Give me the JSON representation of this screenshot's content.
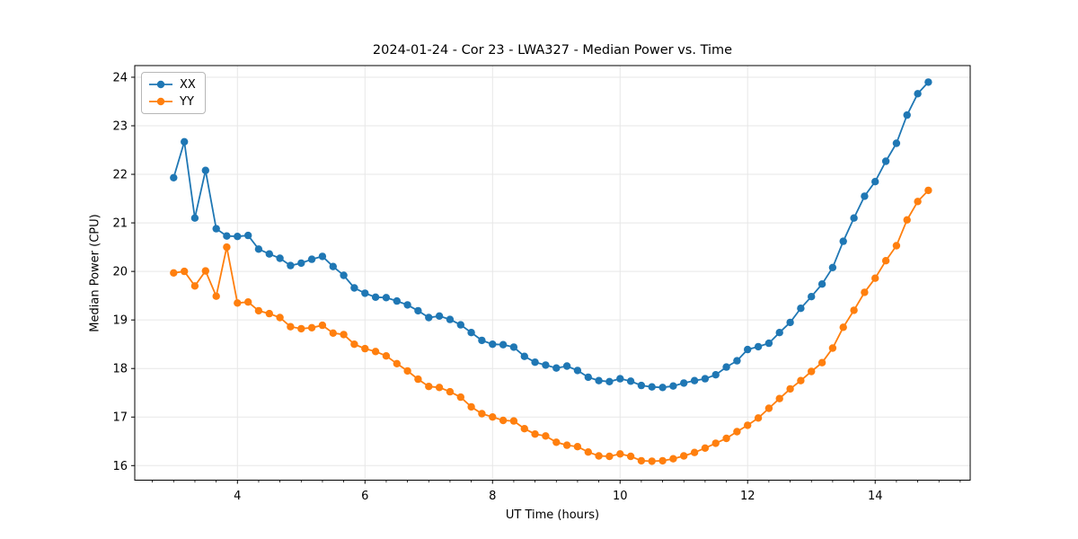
{
  "chart_data": {
    "type": "line",
    "title": "2024-01-24 - Cor 23 - LWA327 - Median Power vs. Time",
    "xlabel": "UT Time (hours)",
    "ylabel": "Median Power (CPU)",
    "grid": true,
    "legend_position": "upper left",
    "axes": {
      "xlim": [
        2.39,
        15.49
      ],
      "ylim": [
        15.7,
        24.24
      ],
      "xticks": [
        4,
        6,
        8,
        10,
        12,
        14
      ],
      "yticks": [
        16,
        17,
        18,
        19,
        20,
        21,
        22,
        23,
        24
      ],
      "x_minor_step": 0.3333
    },
    "style": {
      "grid_color": "#e7e7e7",
      "spine_color": "#000000",
      "tick_color": "#000000",
      "text_color": "#000000",
      "line_width": 1.8,
      "marker": "circle",
      "marker_radius": 4.2
    },
    "x": [
      3,
      3.167,
      3.333,
      3.5,
      3.667,
      3.833,
      4,
      4.167,
      4.333,
      4.5,
      4.667,
      4.833,
      5,
      5.167,
      5.333,
      5.5,
      5.667,
      5.833,
      6,
      6.167,
      6.333,
      6.5,
      6.667,
      6.833,
      7,
      7.167,
      7.333,
      7.5,
      7.667,
      7.833,
      8,
      8.167,
      8.333,
      8.5,
      8.667,
      8.833,
      9,
      9.167,
      9.333,
      9.5,
      9.667,
      9.833,
      10,
      10.167,
      10.333,
      10.5,
      10.667,
      10.833,
      11,
      11.167,
      11.333,
      11.5,
      11.667,
      11.833,
      12,
      12.167,
      12.333,
      12.5,
      12.667,
      12.833,
      13,
      13.167,
      13.333,
      13.5,
      13.667,
      13.833,
      14,
      14.167,
      14.333,
      14.5,
      14.667,
      14.833
    ],
    "series": [
      {
        "name": "XX",
        "color": "#1f77b4",
        "values": [
          21.93,
          22.67,
          21.1,
          22.08,
          20.88,
          20.73,
          20.72,
          20.74,
          20.46,
          20.36,
          20.27,
          20.12,
          20.17,
          20.25,
          20.31,
          20.1,
          19.92,
          19.66,
          19.55,
          19.47,
          19.46,
          19.39,
          19.31,
          19.19,
          19.05,
          19.08,
          19.01,
          18.9,
          18.74,
          18.58,
          18.5,
          18.49,
          18.44,
          18.25,
          18.13,
          18.07,
          18.01,
          18.05,
          17.96,
          17.82,
          17.75,
          17.73,
          17.79,
          17.74,
          17.65,
          17.62,
          17.61,
          17.64,
          17.7,
          17.75,
          17.79,
          17.87,
          18.03,
          18.16,
          18.39,
          18.45,
          18.52,
          18.74,
          18.95,
          19.24,
          19.48,
          19.74,
          20.08,
          20.62,
          21.1,
          21.55,
          21.85,
          22.27,
          22.64,
          23.22,
          23.66,
          23.9
        ]
      },
      {
        "name": "YY",
        "color": "#ff7f0e",
        "values": [
          19.97,
          20,
          19.7,
          20.01,
          19.49,
          20.5,
          19.35,
          19.37,
          19.19,
          19.13,
          19.05,
          18.86,
          18.82,
          18.84,
          18.89,
          18.73,
          18.7,
          18.5,
          18.41,
          18.35,
          18.26,
          18.1,
          17.95,
          17.78,
          17.63,
          17.61,
          17.52,
          17.41,
          17.21,
          17.07,
          17,
          16.93,
          16.92,
          16.76,
          16.65,
          16.61,
          16.48,
          16.42,
          16.39,
          16.28,
          16.2,
          16.19,
          16.24,
          16.19,
          16.1,
          16.09,
          16.1,
          16.14,
          16.2,
          16.27,
          16.36,
          16.46,
          16.56,
          16.7,
          16.83,
          16.98,
          17.18,
          17.38,
          17.58,
          17.75,
          17.94,
          18.12,
          18.42,
          18.85,
          19.2,
          19.57,
          19.86,
          20.22,
          20.53,
          21.06,
          21.44,
          21.67
        ]
      }
    ]
  }
}
